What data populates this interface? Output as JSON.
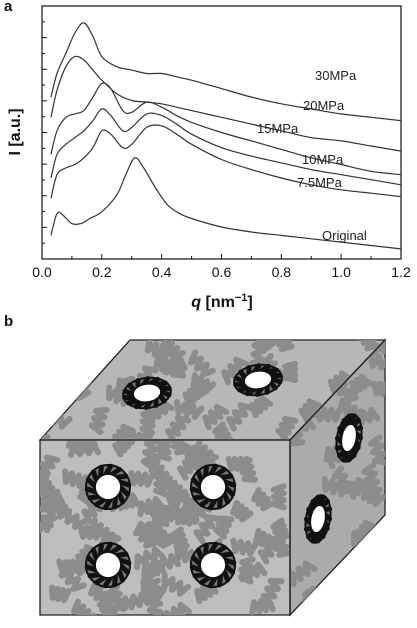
{
  "panel_labels": {
    "a": "a",
    "b": "b"
  },
  "chart_data": {
    "type": "line",
    "title": "",
    "xlabel_var": "q",
    "xlabel_unit": " [nm",
    "xlabel_exp": "−1",
    "xlabel_close": "]",
    "ylabel": "I [a.u.]",
    "xlim": [
      0.0,
      1.2
    ],
    "xticks": [
      "0.0",
      "0.2",
      "0.4",
      "0.6",
      "0.8",
      "1.0",
      "1.2"
    ],
    "yscale": "arbitrary (curves vertically offset)",
    "grid": false,
    "series": [
      {
        "name": "30MPa",
        "x": [
          0.03,
          0.05,
          0.08,
          0.11,
          0.14,
          0.17,
          0.2,
          0.25,
          0.3,
          0.35,
          0.4,
          0.45,
          0.5,
          0.6,
          0.7,
          0.8,
          0.9,
          1.0,
          1.1,
          1.2
        ],
        "y": [
          4.3,
          5.0,
          5.6,
          6.2,
          6.5,
          6.1,
          5.5,
          5.2,
          5.1,
          5.0,
          5.0,
          4.9,
          4.8,
          4.55,
          4.3,
          4.1,
          3.95,
          3.8,
          3.7,
          3.6
        ]
      },
      {
        "name": "20MPa",
        "x": [
          0.03,
          0.05,
          0.08,
          0.11,
          0.14,
          0.17,
          0.2,
          0.25,
          0.3,
          0.35,
          0.4,
          0.45,
          0.5,
          0.6,
          0.7,
          0.8,
          0.9,
          1.0,
          1.1,
          1.2
        ],
        "y": [
          3.7,
          4.5,
          5.2,
          5.5,
          5.4,
          5.1,
          4.8,
          4.4,
          4.2,
          4.15,
          4.1,
          4.0,
          3.9,
          3.7,
          3.5,
          3.3,
          3.1,
          3.0,
          2.85,
          2.7
        ]
      },
      {
        "name": "15MPa",
        "x": [
          0.03,
          0.05,
          0.08,
          0.11,
          0.14,
          0.17,
          0.2,
          0.23,
          0.27,
          0.3,
          0.35,
          0.4,
          0.45,
          0.5,
          0.6,
          0.7,
          0.8,
          0.9,
          1.0,
          1.1,
          1.2
        ],
        "y": [
          2.6,
          3.3,
          3.7,
          3.8,
          3.9,
          4.3,
          4.7,
          4.55,
          3.9,
          3.85,
          4.15,
          4.0,
          3.75,
          3.55,
          3.25,
          3.0,
          2.75,
          2.5,
          2.3,
          2.1,
          2.0
        ]
      },
      {
        "name": "10MPa",
        "x": [
          0.03,
          0.05,
          0.08,
          0.11,
          0.14,
          0.17,
          0.2,
          0.23,
          0.27,
          0.3,
          0.35,
          0.4,
          0.45,
          0.5,
          0.6,
          0.7,
          0.8,
          0.9,
          1.0,
          1.1,
          1.2
        ],
        "y": [
          1.9,
          2.6,
          2.9,
          3.1,
          3.3,
          3.6,
          3.95,
          3.75,
          3.3,
          3.4,
          3.8,
          3.75,
          3.5,
          3.2,
          2.8,
          2.55,
          2.35,
          2.15,
          2.0,
          1.85,
          1.7
        ]
      },
      {
        "name": "7.5MPa",
        "x": [
          0.03,
          0.05,
          0.08,
          0.11,
          0.14,
          0.17,
          0.2,
          0.23,
          0.27,
          0.3,
          0.35,
          0.4,
          0.45,
          0.5,
          0.6,
          0.7,
          0.8,
          0.9,
          1.0,
          1.1,
          1.2
        ],
        "y": [
          1.3,
          2.0,
          2.2,
          2.3,
          2.5,
          2.8,
          3.3,
          3.2,
          2.8,
          2.9,
          3.4,
          3.45,
          3.2,
          2.9,
          2.45,
          2.15,
          1.9,
          1.7,
          1.55,
          1.45,
          1.35
        ]
      },
      {
        "name": "Original",
        "x": [
          0.03,
          0.05,
          0.07,
          0.1,
          0.13,
          0.16,
          0.2,
          0.25,
          0.28,
          0.31,
          0.34,
          0.38,
          0.42,
          0.46,
          0.5,
          0.6,
          0.7,
          0.8,
          0.9,
          1.0,
          1.1,
          1.2
        ],
        "y": [
          0.2,
          0.85,
          0.8,
          0.55,
          0.55,
          0.7,
          0.9,
          1.4,
          2.0,
          2.5,
          2.2,
          1.6,
          1.1,
          0.85,
          0.7,
          0.45,
          0.3,
          0.2,
          0.1,
          0.0,
          -0.1,
          -0.2
        ]
      }
    ]
  },
  "diagram": {
    "description_colors": {
      "cube_fill": "#bfbfbf",
      "cube_top": "#b5b5b5",
      "cube_side": "#a9a9a9",
      "edge": "#2a2a2a",
      "chain": "#8c8c8c",
      "core": "#ffffff",
      "shell": "#111111"
    }
  }
}
